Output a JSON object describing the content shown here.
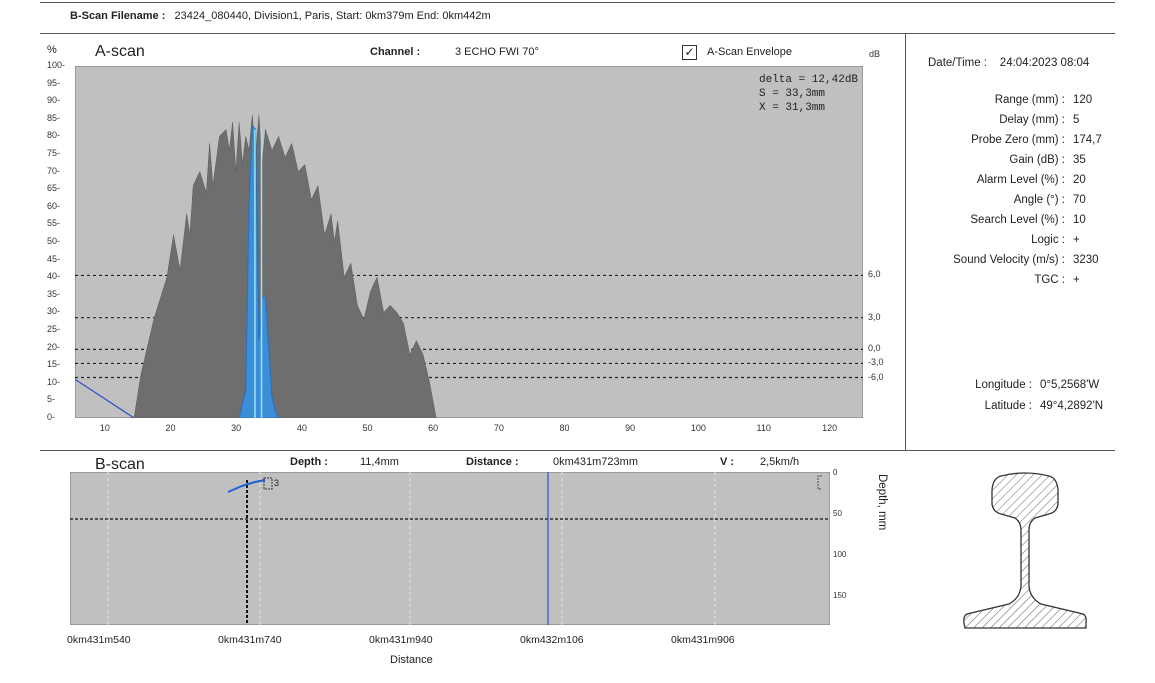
{
  "header": {
    "filename_label": "B-Scan Filename :",
    "filename_value": "23424_080440, Division1, Paris, Start: 0km379m  End: 0km442m"
  },
  "ascan": {
    "title": "A-scan",
    "percent_unit": "%",
    "db_unit": "dB",
    "channel_label": "Channel :",
    "channel_value": "3 ECHO FWI 70°",
    "envelope_label": "A-Scan Envelope",
    "envelope_checked": "✓",
    "readout_delta": "delta = 12,42dB",
    "readout_s": "S = 33,3mm",
    "readout_x": "X = 31,3mm",
    "y_ticks": [
      "100",
      "95",
      "90",
      "85",
      "80",
      "75",
      "70",
      "65",
      "60",
      "55",
      "50",
      "45",
      "40",
      "35",
      "30",
      "25",
      "20",
      "15",
      "10",
      "5",
      "0"
    ],
    "x_ticks": [
      "10",
      "20",
      "30",
      "40",
      "50",
      "60",
      "70",
      "80",
      "90",
      "100",
      "110",
      "120"
    ],
    "db_ticks": [
      "6,0",
      "3,0",
      "0,0",
      "-3,0",
      "-6,0"
    ],
    "colors": {
      "background": "#c0c0c0",
      "envelope": "#6e6e6e",
      "signal": "#3a8fd8",
      "gate": "#7ad6e6"
    }
  },
  "chart_data": {
    "type": "area",
    "x_range": [
      5,
      125
    ],
    "y_range": [
      0,
      100
    ],
    "xlabel": "",
    "ylabel": "%",
    "envelope": {
      "x": [
        14,
        15,
        17,
        19,
        20,
        21,
        22,
        22.5,
        23,
        24,
        25,
        25.5,
        26,
        27,
        28,
        28.5,
        29,
        29.5,
        30,
        30.5,
        31,
        31.5,
        32,
        32.5,
        33,
        33.5,
        34,
        35,
        36,
        37,
        38,
        39,
        40,
        41,
        42,
        43,
        44,
        44.5,
        45,
        46,
        47,
        47.5,
        48,
        49,
        50,
        51,
        52,
        53,
        54,
        55,
        56,
        57,
        58,
        59,
        60
      ],
      "y": [
        0,
        12,
        28,
        40,
        52,
        42,
        58,
        52,
        66,
        70,
        64,
        78,
        66,
        80,
        82,
        76,
        84,
        70,
        84,
        72,
        80,
        76,
        86,
        74,
        86,
        72,
        82,
        76,
        80,
        74,
        78,
        70,
        72,
        62,
        66,
        52,
        58,
        50,
        56,
        40,
        44,
        38,
        32,
        28,
        36,
        40,
        30,
        32,
        30,
        27,
        18,
        22,
        18,
        10,
        0
      ]
    },
    "signal": {
      "x": [
        30,
        31,
        31.5,
        32,
        32.5,
        33,
        33.5,
        34,
        34.5,
        35,
        35.5,
        36
      ],
      "y": [
        0,
        8,
        60,
        83,
        82,
        22,
        34,
        35,
        20,
        6,
        2,
        0
      ]
    },
    "gate_lines_y": [
      40.5,
      28.5,
      19.5,
      15.5,
      11.5
    ],
    "ramp": {
      "x": [
        5,
        14
      ],
      "y": [
        11,
        0
      ]
    }
  },
  "info": {
    "datetime_label": "Date/Time :",
    "datetime_value": "24:04:2023 08:04",
    "rows": [
      {
        "label": "Range (mm) :",
        "value": "120"
      },
      {
        "label": "Delay (mm) :",
        "value": "5"
      },
      {
        "label": "Probe Zero (mm) :",
        "value": "174,7"
      },
      {
        "label": "Gain (dB) :",
        "value": "35"
      },
      {
        "label": "Alarm Level (%) :",
        "value": "20"
      },
      {
        "label": "Angle (°) :",
        "value": "70"
      },
      {
        "label": "Search Level (%) :",
        "value": "10"
      },
      {
        "label": "Logic :",
        "value": "+"
      },
      {
        "label": "Sound Velocity (m/s) :",
        "value": "3230"
      },
      {
        "label": "TGC :",
        "value": "+"
      }
    ],
    "longitude_label": "Longitude :",
    "longitude_value": "0°5,2568'W",
    "latitude_label": "Latitude :",
    "latitude_value": "49°4,2892'N"
  },
  "bscan": {
    "title": "B-scan",
    "depth_label": "Depth :",
    "depth_value": "11,4mm",
    "distance_label": "Distance :",
    "distance_value": "0km431m723mm",
    "speed_label": "V :",
    "speed_value": "2,5km/h",
    "depth_axis_label": "Depth, mm",
    "depth_ticks": [
      "0",
      "50",
      "100",
      "150"
    ],
    "x_ticks": [
      "0km431m540",
      "0km431m740",
      "0km431m940",
      "0km432m106",
      "0km431m906"
    ],
    "x_axis_label": "Distance",
    "marker_label": "3"
  }
}
